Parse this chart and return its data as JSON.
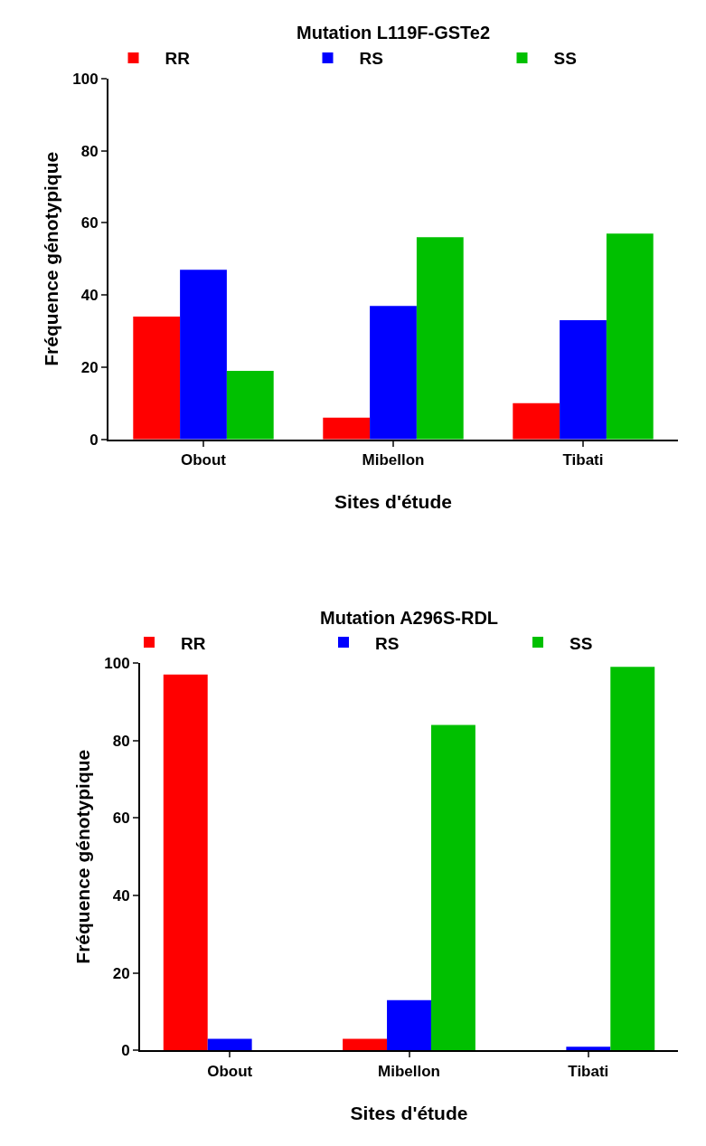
{
  "chart_data": [
    {
      "type": "bar",
      "title": "Mutation L119F-GSTe2",
      "xlabel": "Sites d'étude",
      "ylabel": "Fréquence génotypique",
      "categories": [
        "Obout",
        "Mibellon",
        "Tibati"
      ],
      "series": [
        {
          "name": "RR",
          "color": "#ff0000",
          "values": [
            34,
            6,
            10
          ]
        },
        {
          "name": "RS",
          "color": "#0000ff",
          "values": [
            47,
            37,
            33
          ]
        },
        {
          "name": "SS",
          "color": "#00c000",
          "values": [
            19,
            56,
            57
          ]
        }
      ],
      "ylim": [
        0,
        100
      ],
      "yticks": [
        0,
        20,
        40,
        60,
        80,
        100
      ],
      "legend": "top"
    },
    {
      "type": "bar",
      "title": "Mutation A296S-RDL",
      "xlabel": "Sites d'étude",
      "ylabel": "Fréquence génotypique",
      "categories": [
        "Obout",
        "Mibellon",
        "Tibati"
      ],
      "series": [
        {
          "name": "RR",
          "color": "#ff0000",
          "values": [
            97,
            3,
            0
          ]
        },
        {
          "name": "RS",
          "color": "#0000ff",
          "values": [
            3,
            13,
            1
          ]
        },
        {
          "name": "SS",
          "color": "#00c000",
          "values": [
            0,
            84,
            99
          ]
        }
      ],
      "ylim": [
        0,
        100
      ],
      "yticks": [
        0,
        20,
        40,
        60,
        80,
        100
      ],
      "legend": "top"
    }
  ]
}
